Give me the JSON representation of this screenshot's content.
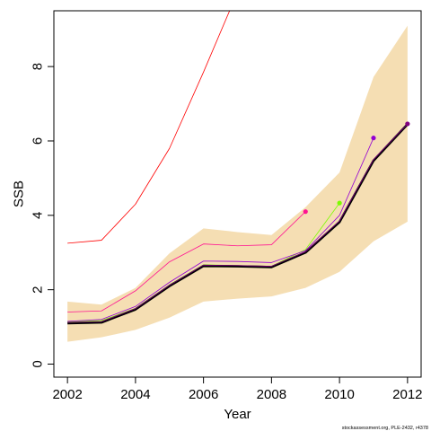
{
  "chart_data": {
    "type": "line",
    "title": "",
    "xlabel": "Year",
    "ylabel": "SSB",
    "xlim": [
      2001.6,
      2012.4
    ],
    "ylim": [
      -0.35,
      9.5
    ],
    "x_ticks": [
      2002,
      2004,
      2006,
      2008,
      2010,
      2012
    ],
    "y_ticks": [
      0,
      2,
      4,
      6,
      8
    ],
    "grid": false,
    "legend": "none",
    "band": {
      "color": "#f5deb3",
      "x": [
        2002,
        2003,
        2004,
        2005,
        2006,
        2007,
        2008,
        2009,
        2010,
        2011,
        2012
      ],
      "lower": [
        0.6,
        0.72,
        0.92,
        1.25,
        1.68,
        1.76,
        1.82,
        2.05,
        2.48,
        3.3,
        3.83
      ],
      "upper": [
        1.68,
        1.6,
        2.05,
        2.98,
        3.65,
        3.55,
        3.47,
        4.22,
        5.15,
        7.72,
        9.1
      ]
    },
    "series": [
      {
        "color": "#ff0000",
        "width": 0.8,
        "x": [
          2002,
          2003,
          2004,
          2005,
          2006,
          2007
        ],
        "y": [
          3.25,
          3.33,
          4.3,
          5.8,
          7.85,
          10.0
        ]
      },
      {
        "color": "#ff1493",
        "width": 0.8,
        "x": [
          2002,
          2003,
          2004,
          2005,
          2006,
          2007,
          2008,
          2009
        ],
        "y": [
          1.4,
          1.43,
          1.97,
          2.75,
          3.23,
          3.18,
          3.21,
          4.1
        ],
        "end_marker": true
      },
      {
        "color": "#7cfc00",
        "width": 0.8,
        "x": [
          2002,
          2003,
          2004,
          2005,
          2006,
          2007,
          2008,
          2009,
          2010
        ],
        "y": [
          1.13,
          1.17,
          1.5,
          2.13,
          2.67,
          2.65,
          2.63,
          3.08,
          4.33
        ],
        "end_marker": true
      },
      {
        "color": "#9400d3",
        "width": 0.8,
        "x": [
          2002,
          2003,
          2004,
          2005,
          2006,
          2007,
          2008,
          2009,
          2010,
          2011
        ],
        "y": [
          1.15,
          1.2,
          1.55,
          2.2,
          2.77,
          2.76,
          2.73,
          3.05,
          4.0,
          6.08
        ],
        "end_marker": true
      },
      {
        "color": "#000000",
        "width": 2.6,
        "x": [
          2002,
          2003,
          2004,
          2005,
          2006,
          2007,
          2008,
          2009,
          2010,
          2011,
          2012
        ],
        "y": [
          1.1,
          1.12,
          1.47,
          2.1,
          2.64,
          2.63,
          2.61,
          3.0,
          3.82,
          5.47,
          6.45
        ]
      },
      {
        "color": "#800080",
        "width": 0.8,
        "x": [
          2002,
          2003,
          2004,
          2005,
          2006,
          2007,
          2008,
          2009,
          2010,
          2011,
          2012
        ],
        "y": [
          1.12,
          1.14,
          1.49,
          2.12,
          2.66,
          2.65,
          2.63,
          3.02,
          3.85,
          5.5,
          6.46
        ],
        "end_marker": true
      }
    ],
    "credit": "stockassessment.org, PLE-2432, r4378"
  }
}
